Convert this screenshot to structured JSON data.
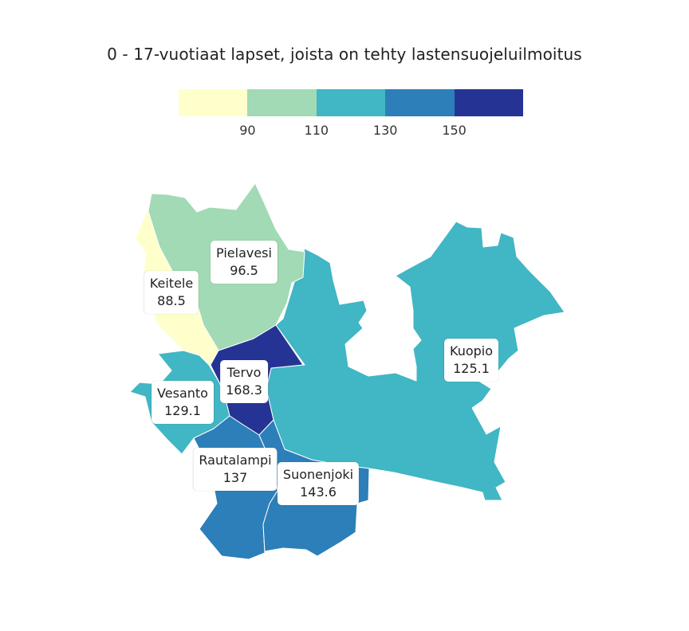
{
  "title": "0 - 17-vuotiaat lapset, joista on tehty lastensuojeluilmoitus",
  "legend": {
    "colors": [
      "#ffffcc",
      "#a1dab4",
      "#41b6c4",
      "#2c7fb8",
      "#253494"
    ],
    "ticks": [
      "90",
      "110",
      "130",
      "150"
    ],
    "breaks": [
      90,
      110,
      130,
      150
    ]
  },
  "regions": [
    {
      "name": "Pielavesi",
      "value": "96.5",
      "color": "#a1dab4"
    },
    {
      "name": "Keitele",
      "value": "88.5",
      "color": "#ffffcc"
    },
    {
      "name": "Tervo",
      "value": "168.3",
      "color": "#253494"
    },
    {
      "name": "Vesanto",
      "value": "129.1",
      "color": "#41b6c4"
    },
    {
      "name": "Kuopio",
      "value": "125.1",
      "color": "#41b6c4"
    },
    {
      "name": "Rautalampi",
      "value": "137",
      "color": "#2c7fb8"
    },
    {
      "name": "Suonenjoki",
      "value": "143.6",
      "color": "#2c7fb8"
    }
  ]
}
